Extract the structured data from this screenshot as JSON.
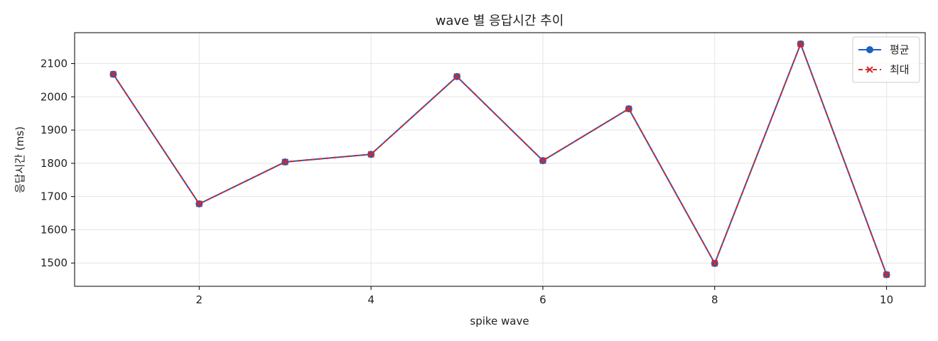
{
  "chart_data": {
    "type": "line",
    "title": "wave 별 응답시간 추이",
    "xlabel": "spike wave",
    "ylabel": "응답시간 (ms)",
    "x": [
      1,
      2,
      3,
      4,
      5,
      6,
      7,
      8,
      9,
      10
    ],
    "xlim": [
      0.55,
      10.45
    ],
    "ylim": [
      1430,
      2193
    ],
    "x_ticks": [
      2,
      4,
      6,
      8,
      10
    ],
    "y_ticks": [
      1500,
      1600,
      1700,
      1800,
      1900,
      2000,
      2100
    ],
    "grid": true,
    "legend_position": "top-right",
    "series": [
      {
        "name": "평균",
        "values": [
          2068,
          1678,
          1804,
          1827,
          2061,
          1808,
          1964,
          1499,
          2159,
          1465
        ],
        "color": "#1f5fbf",
        "line_style": "solid",
        "marker": "circle"
      },
      {
        "name": "최대",
        "values": [
          2068,
          1678,
          1804,
          1827,
          2061,
          1808,
          1964,
          1499,
          2159,
          1465
        ],
        "color": "#d62728",
        "line_style": "dashed",
        "marker": "x"
      }
    ]
  }
}
